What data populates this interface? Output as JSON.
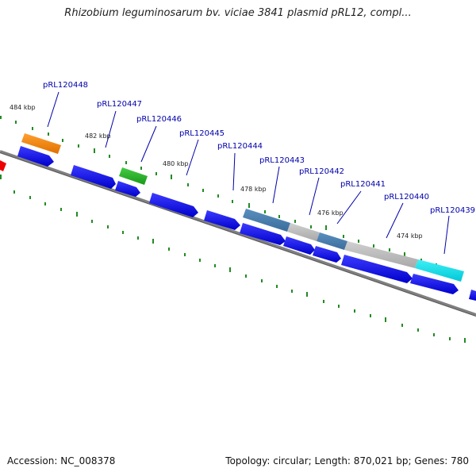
{
  "title": "Rhizobium leguminosarum bv. viciae 3841 plasmid pRL12, compl...",
  "footer": {
    "accession": "Accession: NC_008378",
    "summary": "Topology: circular; Length: 870,021 bp; Genes: 780"
  },
  "colors": {
    "backbone": "#808080",
    "gene_blue": "#0000ee",
    "steel_blue": "#4682b4",
    "orange": "#ff8c00",
    "green": "#22bb22",
    "cyan": "#00e5ee",
    "red": "#ee0000",
    "gray": "#b8b8b8",
    "label": "#0000aa",
    "tick": "#228b22"
  },
  "scale_labels": [
    "484 kbp",
    "482 kbp",
    "480 kbp",
    "478 kbp",
    "476 kbp",
    "474 kbp"
  ],
  "gene_labels": [
    "pRL120448",
    "pRL120447",
    "pRL120446",
    "pRL120445",
    "pRL120444",
    "pRL120443",
    "pRL120442",
    "pRL120441",
    "pRL120440",
    "pRL120439"
  ]
}
